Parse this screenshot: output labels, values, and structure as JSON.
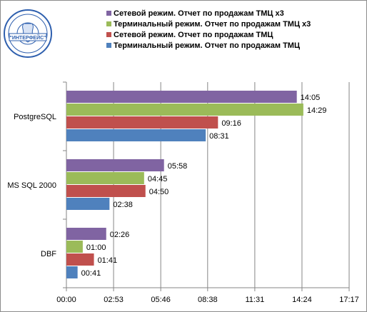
{
  "logo": {
    "name": "company-seal",
    "text": "\"ИНТЕРФЕЙС\""
  },
  "chart_data": {
    "type": "bar",
    "orientation": "horizontal",
    "categories": [
      "PostgreSQL",
      "MS SQL 2000",
      "DBF"
    ],
    "x_ticks": [
      "00:00",
      "02:53",
      "05:46",
      "08:38",
      "11:31",
      "14:24",
      "17:17"
    ],
    "xlim_seconds": [
      0,
      1037
    ],
    "grid": "vertical",
    "legend_position": "top-right",
    "series": [
      {
        "name": "Сетевой режим. Отчет по продажам ТМЦ х3",
        "color": "#8064a2",
        "values": [
          "14:05",
          "05:58",
          "02:26"
        ]
      },
      {
        "name": "Терминальный  режим. Отчет по продажам ТМЦ х3",
        "color": "#9bbb59",
        "values": [
          "14:29",
          "04:45",
          "01:00"
        ]
      },
      {
        "name": "Сетевой режим. Отчет по продажам ТМЦ",
        "color": "#c0504d",
        "values": [
          "09:16",
          "04:50",
          "01:41"
        ]
      },
      {
        "name": "Терминальный  режим. Отчет по продажам ТМЦ",
        "color": "#4f81bd",
        "values": [
          "08:31",
          "02:38",
          "00:41"
        ]
      }
    ]
  }
}
